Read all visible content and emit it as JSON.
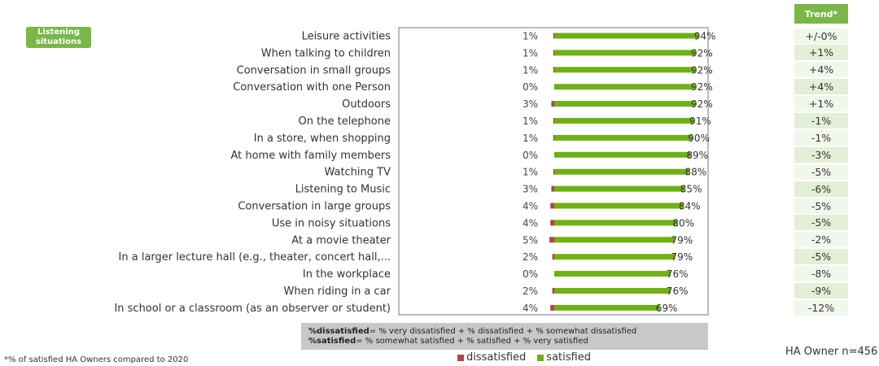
{
  "badge_label": "Listening situations",
  "trend_header": "Trend*",
  "footnote": "*% of satisfied HA Owners compared to 2020",
  "sample_note": "HA Owner n=456",
  "definitions": {
    "dissatisfied_term": "%dissatisfied",
    "dissatisfied_def": "= % very dissatisfied + % dissatisfied + % somewhat dissatisfied",
    "satisfied_term": "%satisfied",
    "satisfied_def": "= % somewhat satisfied + % satisfied + % very satisfied"
  },
  "colors": {
    "dissatisfied": "#b5414a",
    "satisfied": "#6fb114"
  },
  "chart_data": {
    "type": "bar",
    "orientation": "horizontal",
    "stacked": true,
    "unit": "%",
    "xlim": [
      0,
      100
    ],
    "categories": [
      "Leisure activities",
      "When talking to children",
      "Conversation in small groups",
      "Conversation with one Person",
      "Outdoors",
      "On the telephone",
      "In a store, when shopping",
      "At home with family members",
      "Watching TV",
      "Listening to Music",
      "Conversation in large groups",
      "Use in noisy situations",
      "At a movie theater",
      "In a larger lecture hall (e.g., theater, concert hall,...",
      "In the workplace",
      "When riding in a car",
      "In school or a classroom (as an observer or student)"
    ],
    "series": [
      {
        "name": "dissatisfied",
        "values": [
          1,
          1,
          1,
          0,
          3,
          1,
          1,
          0,
          1,
          3,
          4,
          4,
          5,
          2,
          0,
          2,
          4
        ]
      },
      {
        "name": "satisfied",
        "values": [
          94,
          92,
          92,
          92,
          92,
          91,
          90,
          89,
          88,
          85,
          84,
          80,
          79,
          79,
          76,
          76,
          69
        ]
      }
    ],
    "trend": [
      "+/-0%",
      "+1%",
      "+4%",
      "+4%",
      "+1%",
      "-1%",
      "-1%",
      "-3%",
      "-5%",
      "-6%",
      "-5%",
      "-5%",
      "-2%",
      "-5%",
      "-8%",
      "-9%",
      "-12%"
    ],
    "legend": [
      "dissatisfied",
      "satisfied"
    ]
  }
}
